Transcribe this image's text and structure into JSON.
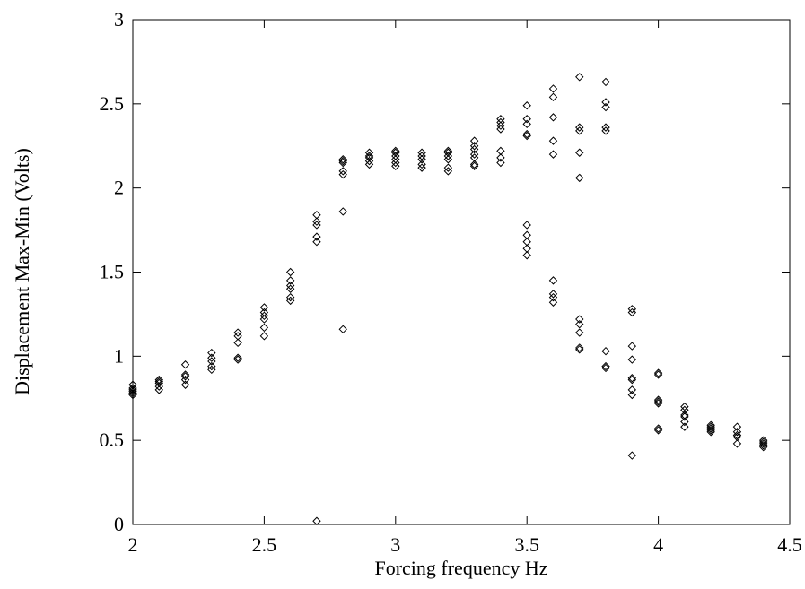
{
  "chart_data": {
    "type": "scatter",
    "x_label": "Forcing frequency Hz",
    "y_label": "Displacement Max-Min (Volts)",
    "marker_color": "#000000",
    "xlim": [
      2,
      4.5
    ],
    "xticks": [
      2,
      2.5,
      3,
      3.5,
      4,
      4.5
    ],
    "ylim": [
      0,
      3
    ],
    "yticks": [
      0,
      0.5,
      1,
      1.5,
      2,
      2.5,
      3
    ],
    "x": [
      2,
      2,
      2,
      2,
      2,
      2,
      2.1,
      2.1,
      2.1,
      2.1,
      2.1,
      2.2,
      2.2,
      2.2,
      2.2,
      2.2,
      2.3,
      2.3,
      2.3,
      2.3,
      2.3,
      2.4,
      2.4,
      2.4,
      2.4,
      2.4,
      2.5,
      2.5,
      2.5,
      2.5,
      2.5,
      2.5,
      2.6,
      2.6,
      2.6,
      2.6,
      2.6,
      2.6,
      2.7,
      2.7,
      2.7,
      2.7,
      2.7,
      2.7,
      2.8,
      2.8,
      2.8,
      2.8,
      2.8,
      2.8,
      2.8,
      2.9,
      2.9,
      2.9,
      2.9,
      2.9,
      3,
      3,
      3,
      3,
      3,
      3,
      3.1,
      3.1,
      3.1,
      3.1,
      3.1,
      3.2,
      3.2,
      3.2,
      3.2,
      3.2,
      3.2,
      3.3,
      3.3,
      3.3,
      3.3,
      3.3,
      3.3,
      3.3,
      3.4,
      3.4,
      3.4,
      3.4,
      3.4,
      3.4,
      3.4,
      3.5,
      3.5,
      3.5,
      3.5,
      3.5,
      3.5,
      3.5,
      3.5,
      3.5,
      3.5,
      3.6,
      3.6,
      3.6,
      3.6,
      3.6,
      3.6,
      3.6,
      3.6,
      3.6,
      3.7,
      3.7,
      3.7,
      3.7,
      3.7,
      3.7,
      3.7,
      3.7,
      3.7,
      3.7,
      3.8,
      3.8,
      3.8,
      3.8,
      3.8,
      3.8,
      3.8,
      3.8,
      3.9,
      3.9,
      3.9,
      3.9,
      3.9,
      3.9,
      3.9,
      3.9,
      3.9,
      4,
      4,
      4,
      4,
      4,
      4,
      4,
      4.1,
      4.1,
      4.1,
      4.1,
      4.1,
      4.1,
      4.2,
      4.2,
      4.2,
      4.2,
      4.2,
      4.3,
      4.3,
      4.3,
      4.3,
      4.3,
      4.4,
      4.4,
      4.4,
      4.4,
      4.4
    ],
    "values": [
      0.77,
      0.78,
      0.79,
      0.8,
      0.81,
      0.83,
      0.8,
      0.82,
      0.84,
      0.85,
      0.86,
      0.83,
      0.86,
      0.88,
      0.89,
      0.95,
      0.92,
      0.94,
      0.97,
      0.99,
      1.02,
      0.98,
      0.99,
      1.08,
      1.12,
      1.14,
      1.12,
      1.17,
      1.22,
      1.24,
      1.26,
      1.29,
      1.33,
      1.35,
      1.4,
      1.42,
      1.45,
      1.5,
      0.02,
      1.68,
      1.71,
      1.78,
      1.8,
      1.84,
      1.16,
      1.86,
      2.08,
      2.1,
      2.15,
      2.16,
      2.17,
      2.14,
      2.16,
      2.18,
      2.19,
      2.21,
      2.13,
      2.15,
      2.17,
      2.19,
      2.21,
      2.22,
      2.12,
      2.14,
      2.17,
      2.19,
      2.21,
      2.1,
      2.12,
      2.17,
      2.19,
      2.21,
      2.22,
      2.13,
      2.14,
      2.18,
      2.2,
      2.23,
      2.25,
      2.28,
      2.15,
      2.18,
      2.22,
      2.35,
      2.37,
      2.39,
      2.41,
      1.6,
      1.64,
      1.68,
      1.72,
      1.78,
      2.31,
      2.32,
      2.38,
      2.41,
      2.49,
      1.32,
      1.35,
      1.37,
      1.45,
      2.2,
      2.28,
      2.42,
      2.54,
      2.59,
      1.04,
      1.05,
      1.14,
      1.19,
      1.22,
      2.06,
      2.21,
      2.34,
      2.36,
      2.66,
      0.93,
      0.94,
      1.03,
      2.34,
      2.36,
      2.48,
      2.51,
      2.63,
      0.41,
      0.77,
      0.8,
      0.86,
      0.87,
      0.98,
      1.06,
      1.26,
      1.28,
      0.56,
      0.57,
      0.72,
      0.73,
      0.74,
      0.89,
      0.9,
      0.58,
      0.61,
      0.64,
      0.65,
      0.68,
      0.7,
      0.55,
      0.56,
      0.57,
      0.58,
      0.59,
      0.48,
      0.52,
      0.53,
      0.55,
      0.58,
      0.46,
      0.47,
      0.48,
      0.49,
      0.5
    ]
  }
}
